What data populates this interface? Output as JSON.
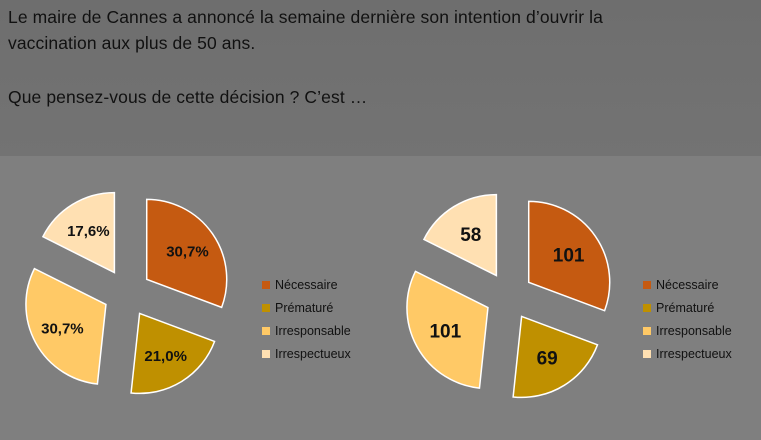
{
  "question": {
    "line1": "Le maire de Cannes a annoncé la semaine dernière son intention d’ouvrir la",
    "line2": "vaccination aux plus de 50 ans.",
    "line3": "Que pensez-vous de cette décision ? C’est …"
  },
  "colors": {
    "necessaire": "#c55a11",
    "premature": "#bf9000",
    "irresponsable": "#ffc966",
    "irrespectueux": "#ffe0b2"
  },
  "chart_data": [
    {
      "type": "pie",
      "title": "",
      "categories": [
        "Nécessaire",
        "Prématuré",
        "Irresponsable",
        "Irrespectueux"
      ],
      "values": [
        30.7,
        21.0,
        30.7,
        17.6
      ],
      "data_labels": [
        "30,7%",
        "21,0%",
        "30,7%",
        "17,6%"
      ],
      "exploded": true,
      "legend": "right"
    },
    {
      "type": "pie",
      "title": "",
      "categories": [
        "Nécessaire",
        "Prématuré",
        "Irresponsable",
        "Irrespectueux"
      ],
      "values": [
        101,
        69,
        101,
        58
      ],
      "data_labels": [
        "101",
        "69",
        "101",
        "58"
      ],
      "exploded": true,
      "legend": "right"
    }
  ]
}
